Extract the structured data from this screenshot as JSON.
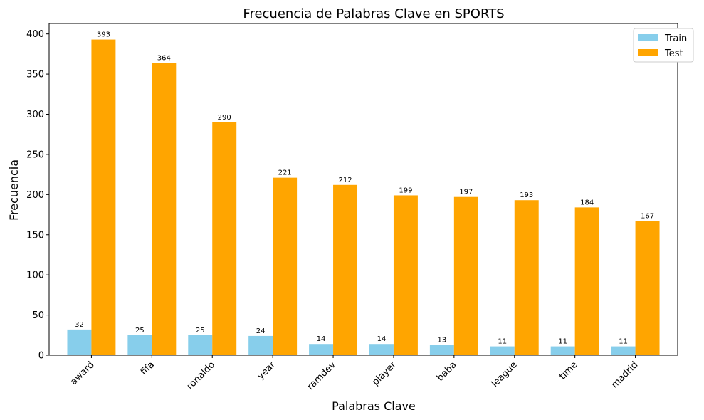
{
  "chart_data": {
    "type": "bar",
    "title": "Frecuencia de Palabras Clave en SPORTS",
    "xlabel": "Palabras Clave",
    "ylabel": "Frecuencia",
    "categories": [
      "award",
      "fifa",
      "ronaldo",
      "year",
      "ramdev",
      "player",
      "baba",
      "league",
      "time",
      "madrid"
    ],
    "series": [
      {
        "name": "Train",
        "values": [
          32,
          25,
          25,
          24,
          14,
          14,
          13,
          11,
          11,
          11
        ],
        "color": "#87ceeb"
      },
      {
        "name": "Test",
        "values": [
          393,
          364,
          290,
          221,
          212,
          199,
          197,
          193,
          184,
          167
        ],
        "color": "#ffa500"
      }
    ],
    "ylim": [
      0,
      413
    ],
    "yticks": [
      0,
      50,
      100,
      150,
      200,
      250,
      300,
      350,
      400
    ],
    "grid": false,
    "legend_position": "top-right"
  }
}
